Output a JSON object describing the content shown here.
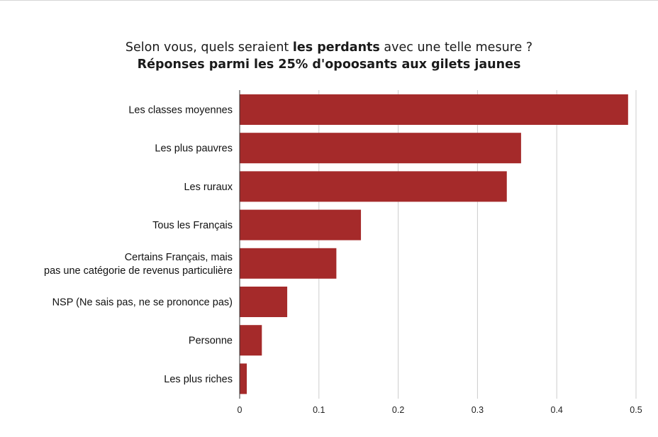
{
  "title": {
    "line1_before": "Selon vous, quels seraient ",
    "line1_bold": "les perdants",
    "line1_after": " avec une telle mesure ?",
    "line2": "Réponses parmi les 25% d'opoosants aux gilets jaunes"
  },
  "chart_data": {
    "type": "bar",
    "orientation": "horizontal",
    "categories": [
      [
        "Les classes moyennes"
      ],
      [
        "Les plus pauvres"
      ],
      [
        "Les ruraux"
      ],
      [
        "Tous les Français"
      ],
      [
        "Certains Français, mais",
        "pas une catégorie de revenus particulière"
      ],
      [
        "NSP (Ne sais pas, ne se prononce pas)"
      ],
      [
        "Personne"
      ],
      [
        "Les plus riches"
      ]
    ],
    "values": [
      0.49,
      0.355,
      0.337,
      0.153,
      0.122,
      0.06,
      0.028,
      0.009
    ],
    "xlim": [
      0,
      0.5
    ],
    "xticks": [
      0,
      0.1,
      0.2,
      0.3,
      0.4,
      0.5
    ],
    "xtick_labels": [
      "0",
      "0.1",
      "0.2",
      "0.3",
      "0.4",
      "0.5"
    ],
    "xlabel": "",
    "ylabel": "",
    "grid": "vertical",
    "legend": "none",
    "bar_color": "#a52a2a",
    "grid_color": "#cccccc",
    "axis_color": "#333333"
  }
}
